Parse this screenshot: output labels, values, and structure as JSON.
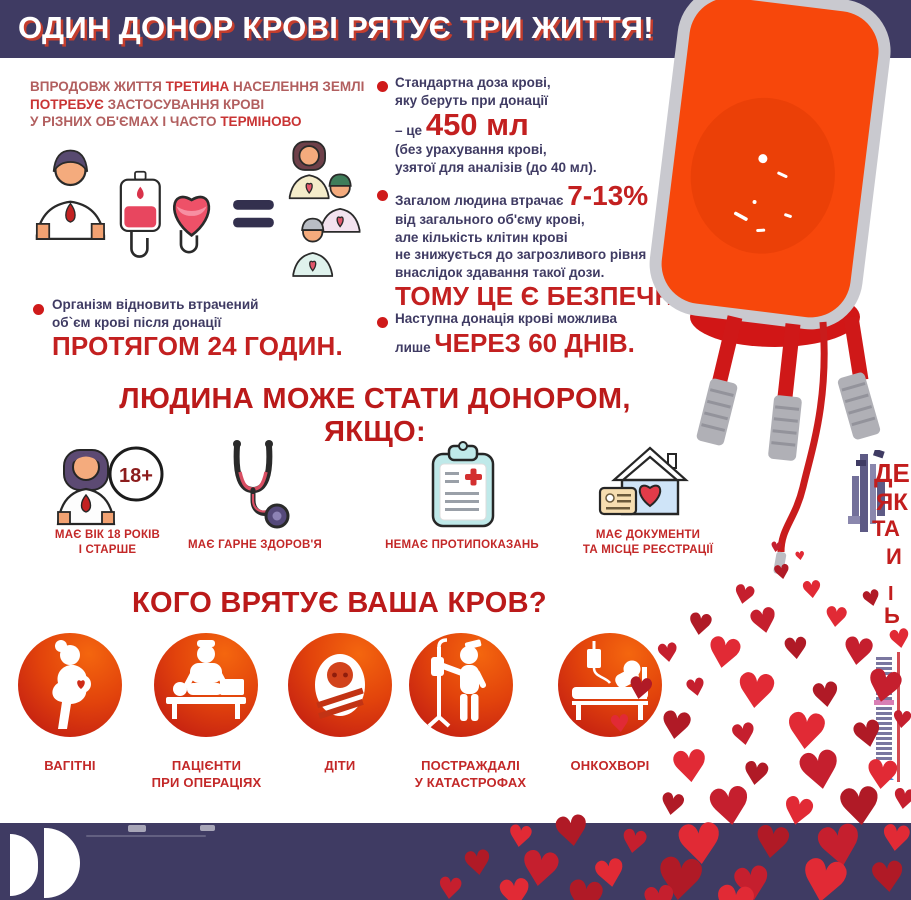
{
  "title": "ОДИН ДОНОР КРОВІ РЯТУЄ ТРИ ЖИТТЯ!",
  "intro": {
    "s1": "ВПРОДОВЖ ЖИТТЯ ",
    "b1": "ТРЕТИНА",
    "s2": " НАСЕЛЕННЯ ЗЕМЛІ",
    "b2": "ПОТРЕБУЄ",
    "s3": " ЗАСТОСУВАННЯ КРОВІ",
    "s4": "У РІЗНИХ ОБ'ЄМАХ І ЧАСТО ",
    "b3": "ТЕРМІНОВО"
  },
  "fact_recovery": {
    "line1": "Організм відновить втрачений",
    "line2": "об`єм крові після донації",
    "big": "ПРОТЯГОМ 24 ГОДИН."
  },
  "fact_dose": {
    "line1": "Стандартна доза крові,",
    "line2": "яку беруть при донації",
    "prefix": "– це ",
    "big": "450 мл",
    "line3": "(без урахування крові,",
    "line4": "узятої для аналізів (до 40 мл)."
  },
  "fact_loss": {
    "prefix": "Загалом людина втрачає ",
    "big": "7-13%",
    "line2": "від загального об'єму крові,",
    "line3": "але кількість клітин крові",
    "line4": "не знижується до загрозливого рівня",
    "line5": "внаслідок здавання такої дози.",
    "shout": "ТОМУ ЦЕ Є БЕЗПЕЧНО!"
  },
  "fact_next": {
    "line1": "Наступна донація крові можлива",
    "prefix": "лише ",
    "big": "ЧЕРЕЗ 60 ДНІВ",
    "suffix": "."
  },
  "donor_section": {
    "heading_line1": "ЛЮДИНА МОЖЕ СТАТИ ДОНОРОМ,",
    "heading_line2": "ЯКЩО:",
    "criteria": [
      {
        "icon": "person-18plus-icon",
        "badge": "18+",
        "lines": [
          "МАЄ ВІК 18 РОКІВ",
          "І СТАРШЕ"
        ]
      },
      {
        "icon": "stethoscope-icon",
        "lines": [
          "МАЄ ГАРНЕ ЗДОРОВ'Я"
        ]
      },
      {
        "icon": "clipboard-medical-icon",
        "lines": [
          "НЕМАЄ ПРОТИПОКАЗАНЬ"
        ]
      },
      {
        "icon": "house-heart-id-icon",
        "lines": [
          "МАЄ ДОКУМЕНТИ",
          "ТА МІСЦЕ РЕЄСТРАЦІЇ"
        ]
      }
    ]
  },
  "who_section": {
    "heading": "КОГО ВРЯТУЄ ВАША КРОВ?",
    "recipients": [
      {
        "icon": "pregnant-woman-icon",
        "lines": [
          "ВАГІТНІ"
        ]
      },
      {
        "icon": "surgery-patient-icon",
        "lines": [
          "ПАЦІЄНТИ",
          "ПРИ ОПЕРАЦІЯХ"
        ]
      },
      {
        "icon": "baby-icon",
        "lines": [
          "ДІТИ"
        ]
      },
      {
        "icon": "disaster-victim-icon",
        "lines": [
          "ПОСТРАЖДАЛІ",
          "У КАТАСТРОФАХ"
        ]
      },
      {
        "icon": "cancer-patient-icon",
        "lines": [
          "ОНКОХВОРІ"
        ]
      }
    ]
  },
  "glitch_fragments": [
    "ДЕ",
    "ЯК",
    "ТА",
    "И",
    "І",
    "Ь"
  ],
  "colors": {
    "banner": "#3f3b63",
    "accent_red": "#c32020",
    "navy_text": "#3f3b63",
    "intro_red": "#b25f5f",
    "bag_red": "#f7470b",
    "heart_red": "#c51f2e"
  }
}
